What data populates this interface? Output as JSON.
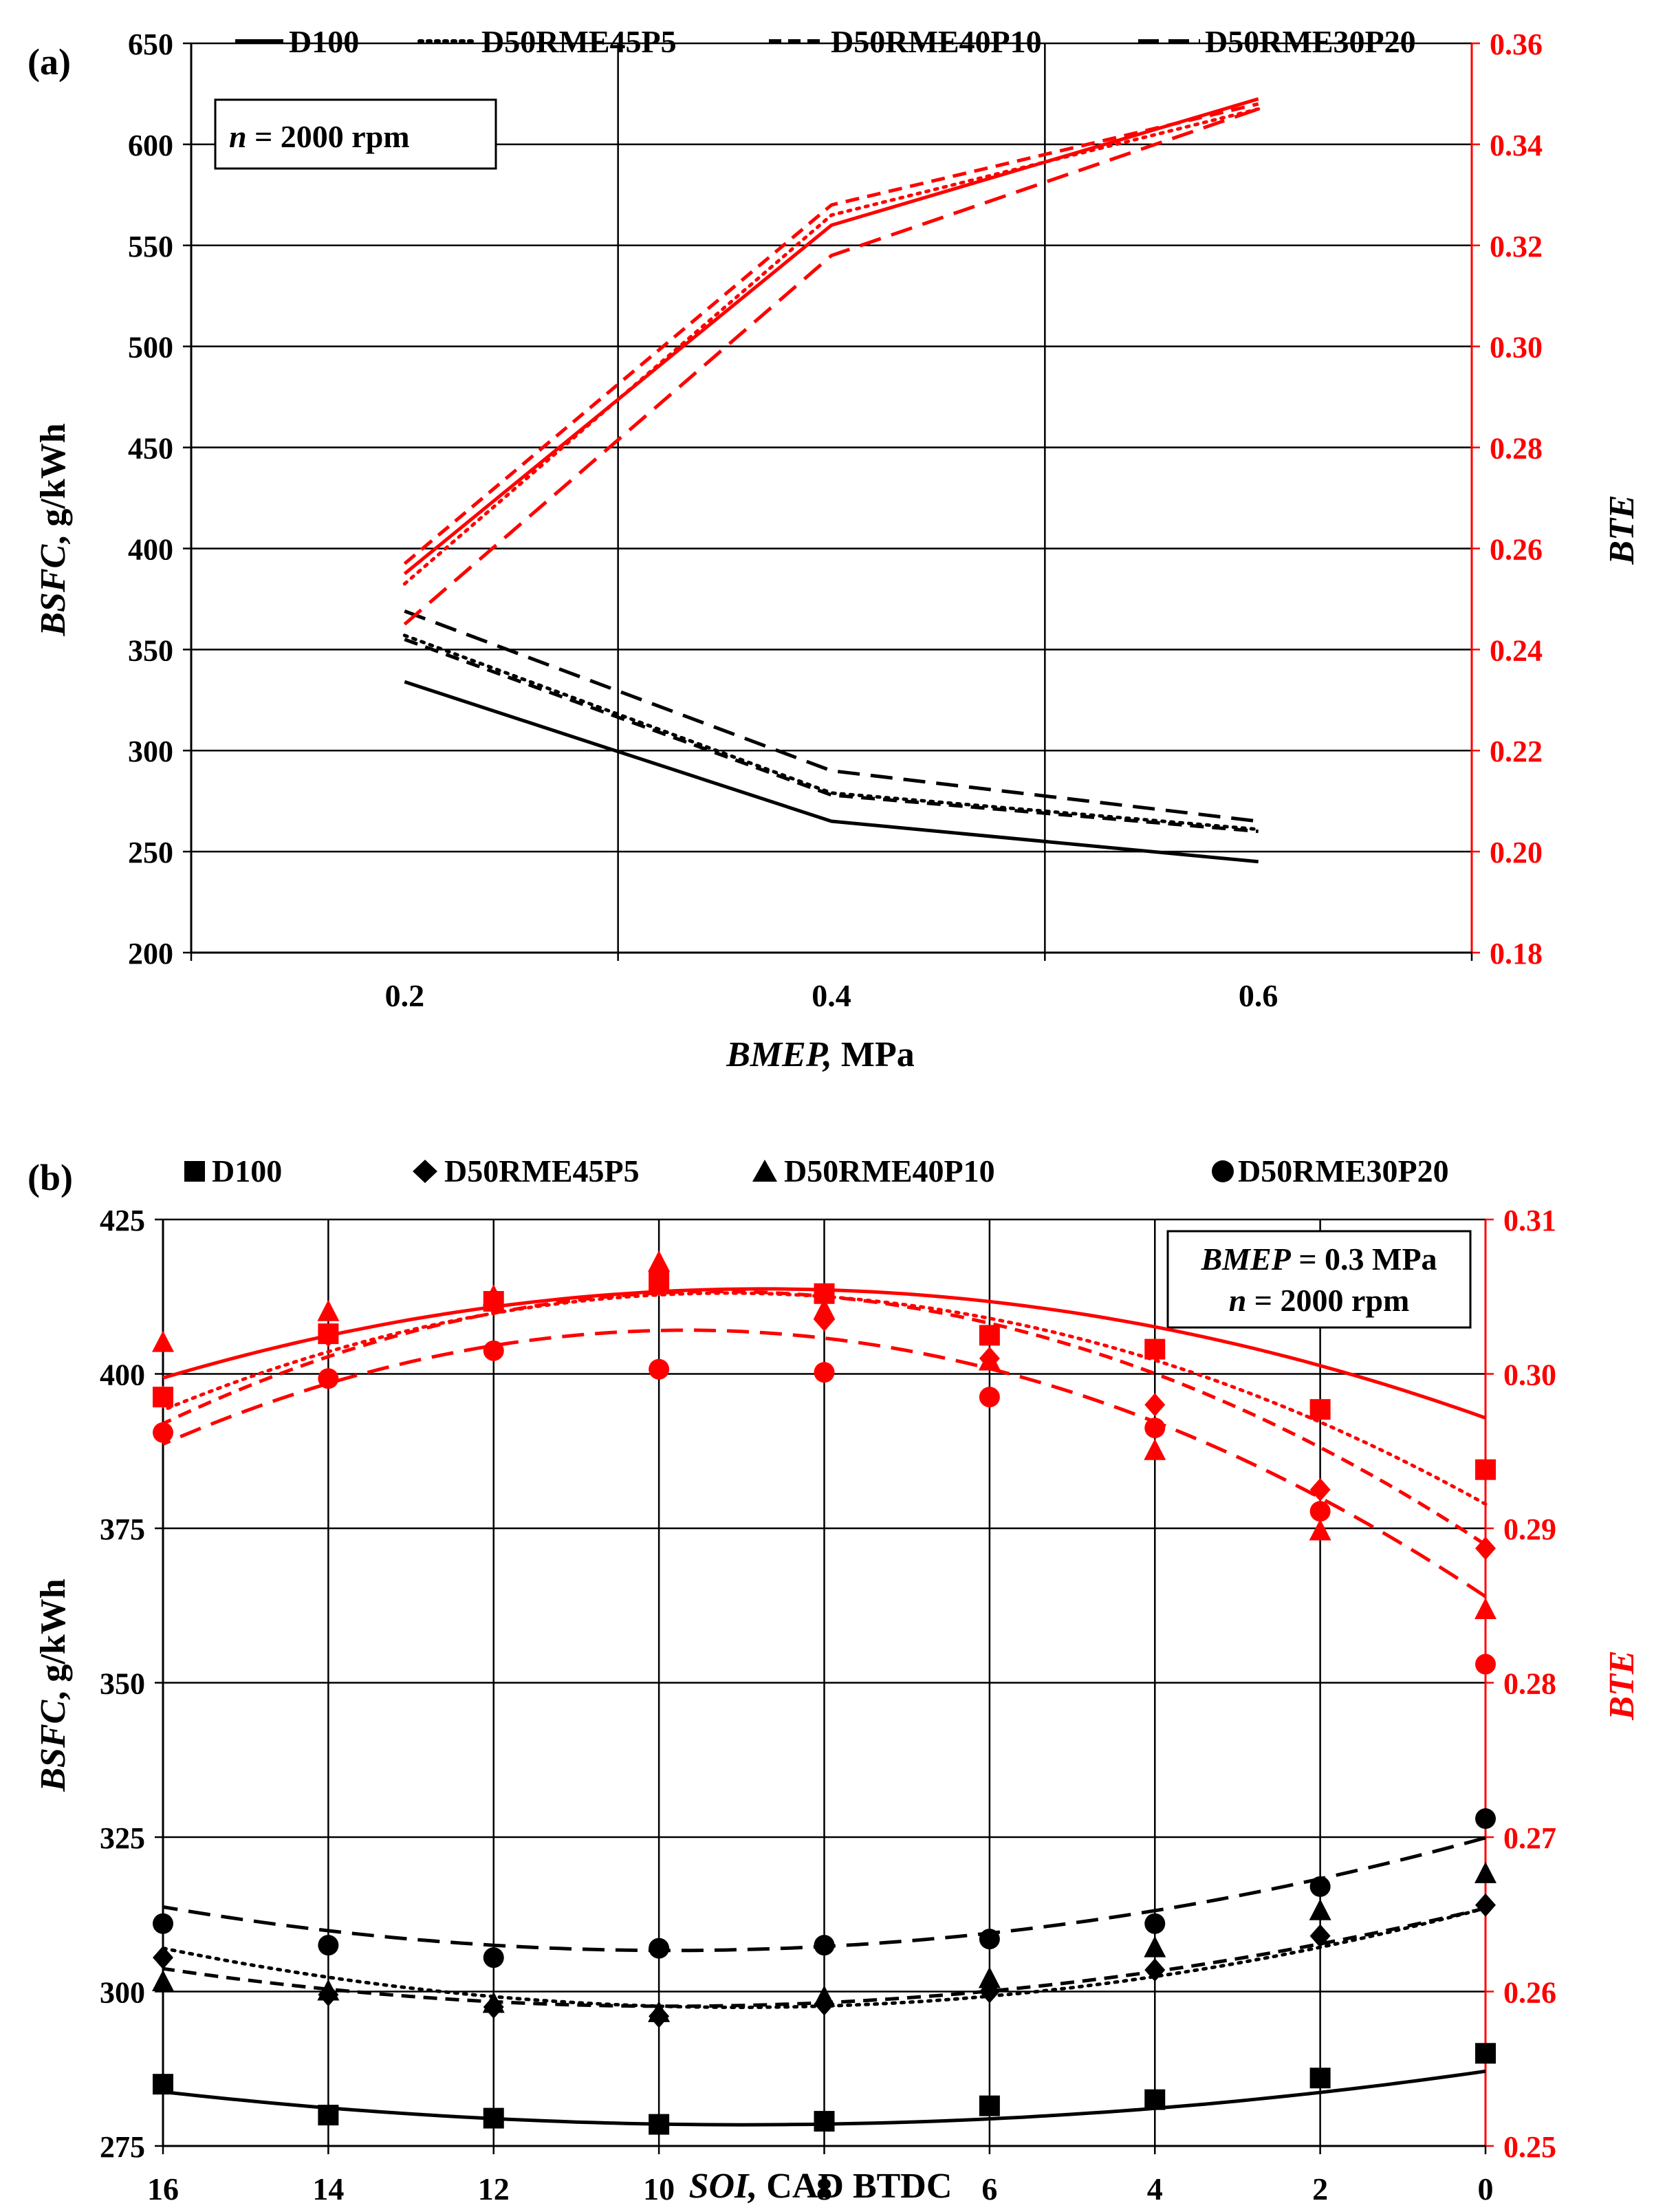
{
  "chart_data": [
    {
      "panel_label": "(a)",
      "type": "line",
      "title": "",
      "xlabel": "MPa",
      "xlabel_italic": "BMEP,",
      "ylabel": ", g/kWh",
      "ylabel_italic": "BSFC",
      "y2label": "BTE",
      "x_ticks": [
        "0.2",
        "0.4",
        "0.6"
      ],
      "x": [
        0.2,
        0.4,
        0.6
      ],
      "xlim": [
        0.1,
        0.7
      ],
      "ylim": [
        200,
        650
      ],
      "y_ticks": [
        "200",
        "250",
        "300",
        "350",
        "400",
        "450",
        "500",
        "550",
        "600",
        "650"
      ],
      "y2lim": [
        0.18,
        0.36
      ],
      "y2_ticks": [
        "0.18",
        "0.20",
        "0.22",
        "0.24",
        "0.26",
        "0.28",
        "0.30",
        "0.32",
        "0.34",
        "0.36"
      ],
      "grid": true,
      "legend_position": "top",
      "annotation": {
        "italic": "n",
        "text": " = 2000 rpm"
      },
      "legend": [
        "D100",
        "D50RME45P5",
        "D50RME40P10",
        "D50RME30P20"
      ],
      "series": [
        {
          "name": "D100",
          "axis": "left",
          "color": "#000000",
          "dash": "solid",
          "values": [
            334,
            265,
            245
          ]
        },
        {
          "name": "D50RME45P5",
          "axis": "left",
          "color": "#000000",
          "dash": "dotted",
          "values": [
            357,
            279,
            261
          ]
        },
        {
          "name": "D50RME40P10",
          "axis": "left",
          "color": "#000000",
          "dash": "dashed",
          "values": [
            355,
            278,
            260
          ]
        },
        {
          "name": "D50RME30P20",
          "axis": "left",
          "color": "#000000",
          "dash": "longdash",
          "values": [
            369,
            290,
            265
          ]
        },
        {
          "name": "D100",
          "axis": "right",
          "color": "#ff0000",
          "dash": "solid",
          "values": [
            0.255,
            0.324,
            0.349
          ]
        },
        {
          "name": "D50RME45P5",
          "axis": "right",
          "color": "#ff0000",
          "dash": "dotted",
          "values": [
            0.253,
            0.326,
            0.347
          ]
        },
        {
          "name": "D50RME40P10",
          "axis": "right",
          "color": "#ff0000",
          "dash": "dashed",
          "values": [
            0.257,
            0.328,
            0.348
          ]
        },
        {
          "name": "D50RME30P20",
          "axis": "right",
          "color": "#ff0000",
          "dash": "longdash",
          "values": [
            0.245,
            0.318,
            0.347
          ]
        }
      ]
    },
    {
      "panel_label": "(b)",
      "type": "scatter",
      "title": "",
      "xlabel": "CAD BTDC",
      "xlabel_italic": "SOI,",
      "ylabel": ", g/kWh",
      "ylabel_italic": "BSFC",
      "y2label": "BTE",
      "x_ticks": [
        "16",
        "14",
        "12",
        "10",
        "8",
        "6",
        "4",
        "2",
        "0"
      ],
      "x": [
        16,
        14,
        12,
        10,
        8,
        6,
        4,
        2,
        0
      ],
      "xlim": [
        16,
        0
      ],
      "ylim": [
        275,
        425
      ],
      "y_ticks": [
        "275",
        "300",
        "325",
        "350",
        "375",
        "400",
        "425"
      ],
      "y2lim": [
        0.25,
        0.31
      ],
      "y2_ticks": [
        "0.25",
        "0.26",
        "0.27",
        "0.28",
        "0.29",
        "0.30",
        "0.31"
      ],
      "grid": true,
      "legend_position": "top",
      "annotation": {
        "line1_italic": "BMEP",
        "line1": " = 0.3 MPa",
        "line2_italic": "n",
        "line2": " = 2000 rpm"
      },
      "legend": [
        "D100",
        "D50RME45P5",
        "D50RME40P10",
        "D50RME30P20"
      ],
      "series": [
        {
          "name": "D100",
          "axis": "left",
          "color": "#000000",
          "marker": "square",
          "dash": "solid",
          "values": [
            285,
            280,
            279.5,
            278.5,
            279,
            281.5,
            282.5,
            286,
            290
          ],
          "fit": [
            0.10775,
            -1.9325,
            287.1
          ]
        },
        {
          "name": "D50RME45P5",
          "axis": "left",
          "color": "#000000",
          "marker": "diamond",
          "dash": "dotted",
          "values": [
            305.5,
            299.5,
            297.5,
            296,
            298,
            300,
            303.5,
            309,
            314
          ],
          "fit": [
            0.197,
            -3.557,
            313.5
          ]
        },
        {
          "name": "D50RME40P10",
          "axis": "left",
          "color": "#000000",
          "marker": "triangle",
          "dash": "dashed",
          "values": [
            301.5,
            300,
            298,
            296.5,
            299,
            302,
            307,
            313,
            319
          ],
          "fit": [
            0.1625,
            -3.212,
            313.5
          ]
        },
        {
          "name": "D50RME30P20",
          "axis": "left",
          "color": "#000000",
          "marker": "circle",
          "dash": "longdash",
          "values": [
            311,
            307.5,
            305.5,
            307,
            307.5,
            308.5,
            311,
            317,
            328
          ],
          "fit": [
            0.1875,
            -3.7,
            324.9
          ]
        },
        {
          "name": "D100",
          "axis": "right",
          "color": "#ff0000",
          "marker": "square",
          "dash": "solid",
          "values": [
            0.2985,
            0.3026,
            0.3047,
            0.306,
            0.3052,
            0.3025,
            0.3016,
            0.2977,
            0.2938
          ],
          "fit": [
            -0.000109375,
            0.001912,
            0.29715
          ]
        },
        {
          "name": "D50RME45P5",
          "axis": "right",
          "color": "#ff0000",
          "marker": "diamond",
          "dash": "dotted",
          "values": [
            0.2985,
            0.3025,
            0.3048,
            0.3058,
            0.3035,
            0.301,
            0.298,
            0.2925,
            0.2887
          ],
          "fit": [
            -0.0001625,
            0.00298,
            0.29157
          ]
        },
        {
          "name": "D50RME40P10",
          "axis": "right",
          "color": "#ff0000",
          "marker": "triangle",
          "dash": "dashed",
          "values": [
            0.302,
            0.304,
            0.305,
            0.3072,
            0.3041,
            0.3008,
            0.295,
            0.2898,
            0.2847
          ],
          "fit": [
            -0.00019,
            0.00353,
            0.28894
          ]
        },
        {
          "name": "D50RME30P20",
          "axis": "right",
          "color": "#ff0000",
          "marker": "circle",
          "dash": "longdash",
          "values": [
            0.2962,
            0.2997,
            0.3015,
            0.3003,
            0.3001,
            0.2985,
            0.2965,
            0.2911,
            0.2812
          ],
          "fit": [
            -0.000184375,
            0.003567,
            0.28558
          ]
        }
      ]
    }
  ]
}
